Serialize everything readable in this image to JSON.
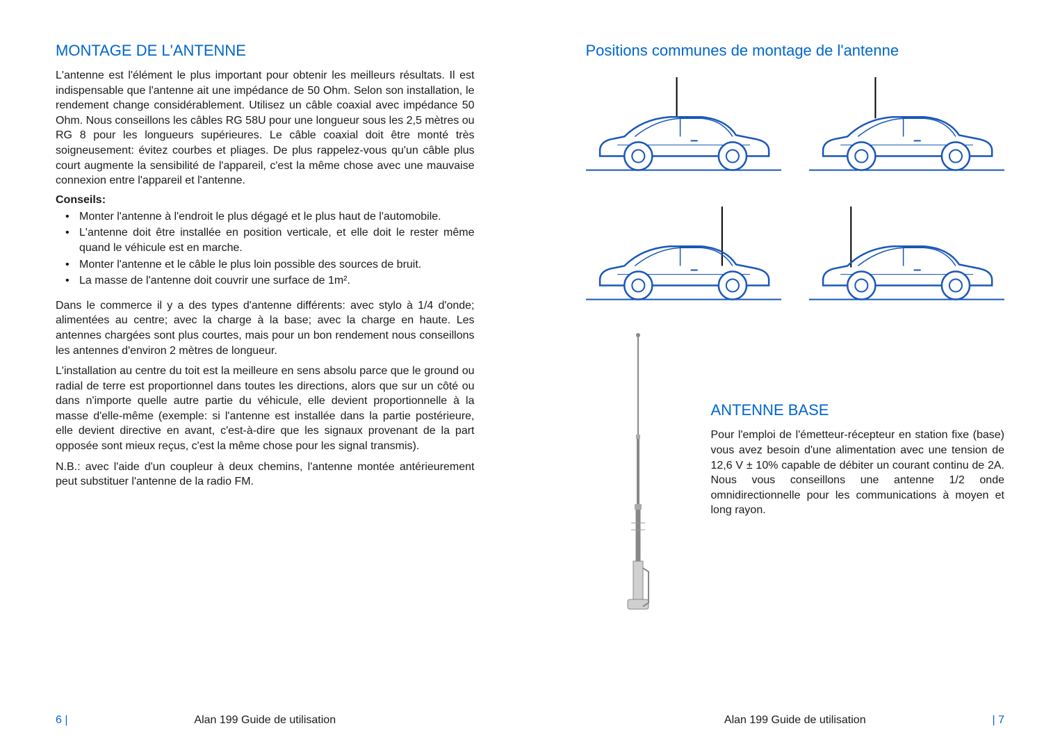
{
  "colors": {
    "heading": "#0066cc",
    "body": "#1a1a1a",
    "carStroke": "#1957b8",
    "groundStroke": "#1957b8",
    "antennaGray": "#888888",
    "background": "#ffffff"
  },
  "typography": {
    "heading_fontsize": 22,
    "body_fontsize": 16,
    "footer_fontsize": 16
  },
  "leftPage": {
    "heading": "MONTAGE DE L'ANTENNE",
    "para1": "L'antenne est l'élément le plus important pour obtenir les meilleurs résultats. Il est indispensable que l'antenne ait une impédance de 50 Ohm. Selon son installation, le rendement change considérablement. Utilisez un câble coaxial avec impédance 50 Ohm. Nous conseillons les câbles RG 58U pour une longueur sous les 2,5 mètres ou RG 8 pour les longueurs supérieures. Le câble coaxial doit être monté très soigneusement: évitez courbes et pliages. De plus rappelez-vous qu'un câble plus court augmente la sensibilité de l'appareil, c'est la même chose avec une mauvaise connexion entre l'appareil et l'antenne.",
    "tipsLabel": "Conseils:",
    "tips": [
      "Monter l'antenne à l'endroit le plus dégagé et le plus haut de l'automobile.",
      "L'antenne doit être installée en position verticale, et elle doit le rester même quand le véhicule est en marche.",
      "Monter l'antenne et le câble le plus loin possible des sources de bruit.",
      "La masse de l'antenne doit couvrir une surface de 1m²."
    ],
    "para2": "Dans le commerce il y a des types d'antenne différents: avec stylo à 1/4 d'onde; alimentées au centre; avec la charge à la base; avec la charge en haute. Les antennes chargées sont plus courtes, mais pour un bon rendement nous conseillons les antennes d'environ 2 mètres de longueur.",
    "para3": "L'installation au centre du toit est la meilleure en sens absolu parce que le ground ou radial de terre est proportionnel dans toutes les directions, alors que sur un côté ou dans n'importe quelle autre partie du véhicule, elle devient proportionnelle à la masse d'elle-même (exemple: si l'antenne est installée dans la partie postérieure, elle devient directive en avant, c'est-à-dire que les signaux provenant de la part opposée sont mieux reçus, c'est la même chose pour les signal transmis).",
    "para4": "N.B.: avec l'aide d'un coupleur à deux chemins, l'antenne montée antérieurement peut substituer l'antenne de la radio FM.",
    "footerTitle": "Alan 199 Guide de utilisation",
    "pageNumber": "6 |"
  },
  "rightPage": {
    "heading": "Positions communes de montage de l'antenne",
    "antennaPositions": [
      {
        "label": "roof-center",
        "antennaX": 130
      },
      {
        "label": "roof-front",
        "antennaX": 95
      },
      {
        "label": "trunk-rear",
        "antennaX": 195
      },
      {
        "label": "hood-front",
        "antennaX": 60
      }
    ],
    "sectionHeading": "ANTENNE BASE",
    "sectionBody": "Pour l'emploi de l'émetteur-récepteur en station fixe (base) vous avez besoin d'une alimentation avec une tension de 12,6 V ± 10% capable de débiter un courant continu de 2A. Nous vous conseillons une antenne 1/2 onde omnidirectionnelle pour les communications à moyen et long rayon.",
    "footerTitle": "Alan 199 Guide de utilisation",
    "pageNumber": "| 7"
  }
}
